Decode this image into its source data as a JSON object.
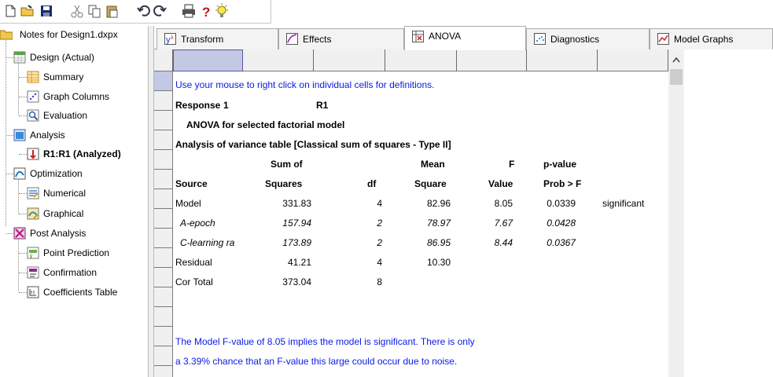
{
  "tree": {
    "root": "Notes for Design1.dxpx",
    "items": [
      {
        "label": "Design (Actual)",
        "icon": "design-table-icon"
      },
      {
        "label": "Summary",
        "icon": "summary-icon"
      },
      {
        "label": "Graph Columns",
        "icon": "graph-columns-icon"
      },
      {
        "label": "Evaluation",
        "icon": "evaluation-icon"
      },
      {
        "label": "Analysis",
        "icon": "analysis-icon"
      },
      {
        "label": "R1:R1 (Analyzed)",
        "icon": "response-icon"
      },
      {
        "label": "Optimization",
        "icon": "optimization-icon"
      },
      {
        "label": "Numerical",
        "icon": "numerical-icon"
      },
      {
        "label": "Graphical",
        "icon": "graphical-icon"
      },
      {
        "label": "Post Analysis",
        "icon": "post-analysis-icon"
      },
      {
        "label": "Point Prediction",
        "icon": "point-prediction-icon"
      },
      {
        "label": "Confirmation",
        "icon": "confirmation-icon"
      },
      {
        "label": "Coefficients Table",
        "icon": "coefficients-table-icon"
      }
    ]
  },
  "tabs": [
    {
      "label": "Transform",
      "icon": "transform-icon",
      "active": false
    },
    {
      "label": "Effects",
      "icon": "effects-icon",
      "active": false
    },
    {
      "label": "ANOVA",
      "icon": "anova-icon",
      "active": true
    },
    {
      "label": "Diagnostics",
      "icon": "diagnostics-icon",
      "active": false
    },
    {
      "label": "Model Graphs",
      "icon": "model-graphs-icon",
      "active": false
    }
  ],
  "report": {
    "hint": "Use your mouse to right click on individual cells for definitions.",
    "response_label": "Response",
    "response_num": "1",
    "response_name": "R1",
    "model_title": "ANOVA for selected factorial model",
    "table_title": "Analysis of variance table [Classical sum of squares - Type II]",
    "headers_top": {
      "ss": "Sum of",
      "ms": "Mean",
      "f": "F",
      "p": "p-value"
    },
    "headers_bottom": {
      "source": "Source",
      "ss": "Squares",
      "df": "df",
      "ms": "Square",
      "f": "Value",
      "p": "Prob > F"
    },
    "rows": [
      {
        "source": "Model",
        "ss": "331.83",
        "df": "4",
        "ms": "82.96",
        "f": "8.05",
        "p": "0.0339",
        "note": "significant",
        "italic": false
      },
      {
        "source": "A-epoch",
        "ss": "157.94",
        "df": "2",
        "ms": "78.97",
        "f": "7.67",
        "p": "0.0428",
        "note": "",
        "italic": true
      },
      {
        "source": "C-learning ra",
        "ss": "173.89",
        "df": "2",
        "ms": "86.95",
        "f": "8.44",
        "p": "0.0367",
        "note": "",
        "italic": true
      },
      {
        "source": "Residual",
        "ss": "41.21",
        "df": "4",
        "ms": "10.30",
        "f": "",
        "p": "",
        "note": "",
        "italic": false
      },
      {
        "source": "Cor Total",
        "ss": "373.04",
        "df": "8",
        "ms": "",
        "f": "",
        "p": "",
        "note": "",
        "italic": false
      }
    ],
    "footer_line1": "The Model F-value of 8.05 implies the model is significant.  There is only",
    "footer_line2": "a 3.39% chance that an F-value this large could occur due to noise."
  },
  "colors": {
    "link_blue": "#0a1ae6",
    "selection": "#c3c8e4"
  }
}
